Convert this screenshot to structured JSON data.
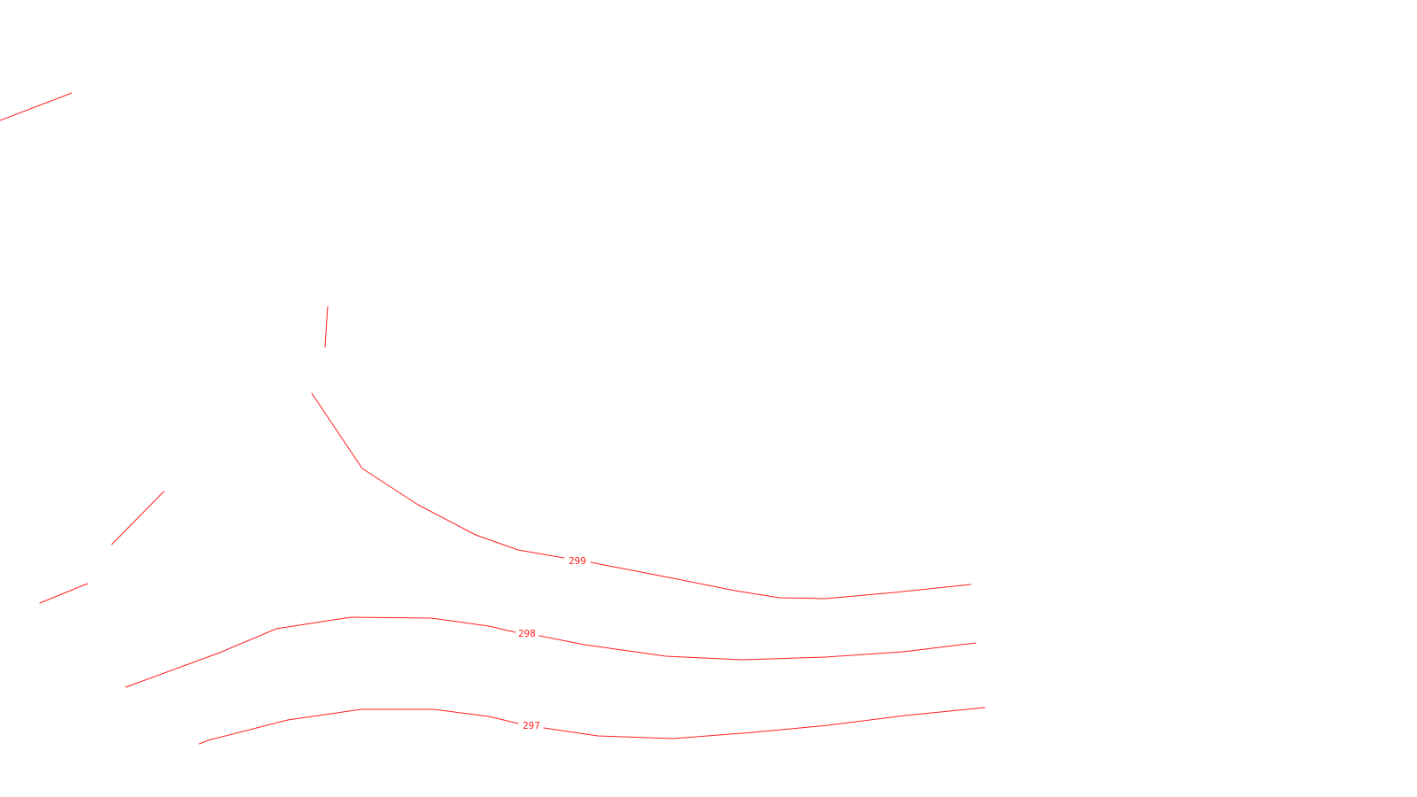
{
  "map": {
    "line_color": "#ff2020",
    "background": "#ffffff",
    "contours": [
      {
        "id": "contour-297",
        "label": "297"
      },
      {
        "id": "contour-298",
        "label": "298"
      },
      {
        "id": "contour-299",
        "label": "299"
      }
    ]
  }
}
